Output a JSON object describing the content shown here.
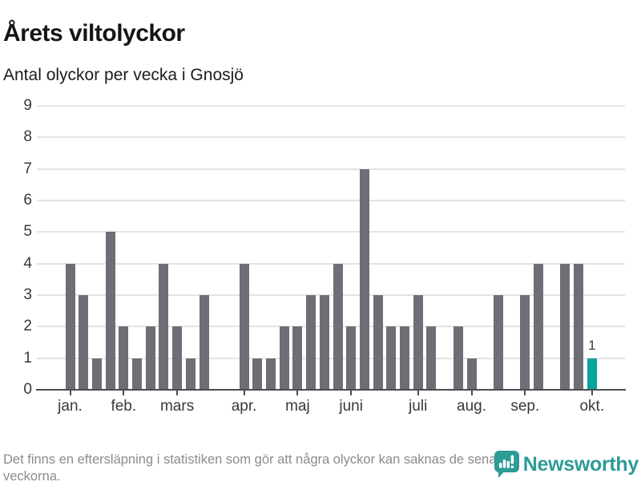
{
  "header": {
    "title": "Årets viltolyckor",
    "subtitle": "Antal olyckor per vecka i Gnosjö"
  },
  "chart_data": {
    "type": "bar",
    "title": "Årets viltolyckor",
    "subtitle": "Antal olyckor per vecka i Gnosjö",
    "ylabel": "",
    "xlabel": "",
    "ylim": [
      0,
      9
    ],
    "y_ticks": [
      0,
      1,
      2,
      3,
      4,
      5,
      6,
      7,
      8,
      9
    ],
    "grid": "horizontal",
    "values_per_week": [
      4,
      3,
      1,
      5,
      2,
      1,
      2,
      4,
      2,
      1,
      3,
      0,
      0,
      4,
      1,
      1,
      2,
      2,
      3,
      3,
      4,
      2,
      7,
      3,
      2,
      2,
      3,
      2,
      0,
      2,
      1,
      0,
      3,
      0,
      3,
      4,
      0,
      4,
      4,
      1
    ],
    "highlight_index": 39,
    "highlight_label": "1",
    "month_ticks": {
      "labels": [
        "jan.",
        "feb.",
        "mars",
        "apr.",
        "maj",
        "juni",
        "juli",
        "aug.",
        "sep.",
        "okt."
      ],
      "slots": [
        0,
        4,
        8,
        13,
        17,
        21,
        26,
        30,
        34,
        39
      ]
    },
    "colors": {
      "bar": "#6e6e76",
      "highlight": "#00a59c",
      "grid": "#e3e3e3",
      "axis": "#4d4d52",
      "tick_label": "#38383d",
      "annotation": "#3a3a3f"
    }
  },
  "footer": {
    "note": "Det finns en eftersläpning i statistiken som gör att några olyckor kan saknas de senaste veckorna.",
    "brand": "Newsworthy",
    "brand_color": "#2d9b96"
  }
}
